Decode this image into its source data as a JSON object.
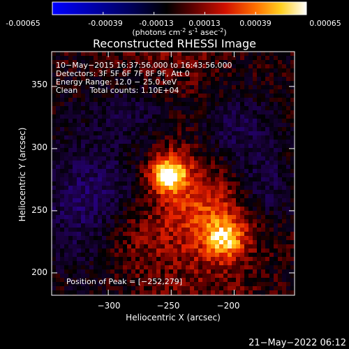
{
  "colorbar": {
    "ticks": [
      "-0.00065",
      "-0.00039",
      "-0.00013",
      "0.00013",
      "0.00039",
      "0.00065"
    ],
    "units_prefix": "(photons cm",
    "units_exp1": "-2",
    "units_mid": " s",
    "units_exp2": "-1",
    "units_mid2": " asec",
    "units_exp3": "-2",
    "units_suffix": ")",
    "colors": [
      "#0000ff",
      "#000060",
      "#000000",
      "#7a0000",
      "#ff2000",
      "#ff9000",
      "#ffff40",
      "#ffffff"
    ]
  },
  "chart_data": {
    "type": "heatmap",
    "title": "Reconstructed RHESSI Image",
    "xlabel": "Heliocentric X (arcsec)",
    "ylabel": "Heliocentric Y (arcsec)",
    "xlim": [
      -345,
      -152
    ],
    "ylim": [
      182,
      378
    ],
    "xticks": [
      -300,
      -250,
      -200
    ],
    "yticks": [
      200,
      250,
      300,
      350
    ],
    "xtick_labels": [
      "−300",
      "−250",
      "−200"
    ],
    "ytick_labels": [
      "200",
      "250",
      "300",
      "350"
    ],
    "value_range": [
      -0.00065,
      0.00065
    ],
    "sources": [
      {
        "x": -252,
        "y": 279,
        "peak": 0.00065
      },
      {
        "x": -207,
        "y": 227,
        "peak": 0.00045
      },
      {
        "x": -222,
        "y": 250,
        "peak": 0.00022
      },
      {
        "x": -285,
        "y": 230,
        "peak": 0.00018
      }
    ],
    "annotations": {
      "line1": "10−May−2015 16:37:56.000 to 16:43:56.000",
      "line2": "Detectors: 3F 5F 6F 7F 8F 9F, Att 0",
      "line3": "Energy Range: 12.0 − 25.0 keV",
      "line4": "Clean     Total counts: 1.10E+04",
      "peak": "Position of Peak = [−252,279]"
    }
  },
  "footer": {
    "timestamp": "21−May−2022 06:12"
  }
}
